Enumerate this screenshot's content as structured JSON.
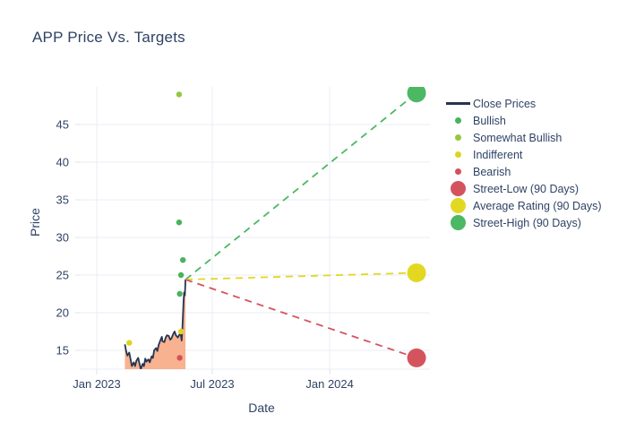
{
  "title": "APP Price Vs. Targets",
  "colors": {
    "text": "#2f4365",
    "grid": "#e9edf4",
    "tick": "#dde3ee",
    "close_line": "#263450",
    "area_fill": "#f8b28f",
    "bullish": "#48b35c",
    "somewhat_bullish": "#94c73e",
    "indifferent": "#e0d320",
    "bearish": "#d4505a",
    "street_low": "#d4545e",
    "average_rating": "#e2d821",
    "street_high": "#4bb863"
  },
  "legend": {
    "items": [
      {
        "label": "Close Prices",
        "marker": "line",
        "color": "#263450"
      },
      {
        "label": "Bullish",
        "marker": "dot",
        "color": "#48b35c"
      },
      {
        "label": "Somewhat Bullish",
        "marker": "dot",
        "color": "#94c73e"
      },
      {
        "label": "Indifferent",
        "marker": "dot",
        "color": "#e0d320"
      },
      {
        "label": "Bearish",
        "marker": "dot",
        "color": "#d4505a"
      },
      {
        "label": "Street-Low (90 Days)",
        "marker": "big-dot",
        "color": "#d4545e"
      },
      {
        "label": "Average Rating (90 Days)",
        "marker": "big-dot",
        "color": "#e2d821"
      },
      {
        "label": "Street-High (90 Days)",
        "marker": "big-dot",
        "color": "#4bb863"
      }
    ]
  },
  "chart_data": {
    "type": "line",
    "title": "APP Price Vs. Targets",
    "xlabel": "Date",
    "ylabel": "Price",
    "y_ticks": [
      15,
      20,
      25,
      30,
      35,
      40,
      45
    ],
    "y_range": [
      12.4,
      50.1
    ],
    "x_range": [
      "2022-12-07",
      "2024-06-03"
    ],
    "x_ticks": [
      {
        "label": "Jan 2023",
        "date": "2023-01-01"
      },
      {
        "label": "Jul 2023",
        "date": "2023-07-01"
      },
      {
        "label": "Jan 2024",
        "date": "2024-01-01"
      }
    ],
    "grid": true,
    "legend_position": "right",
    "close_prices": {
      "name": "Close Prices",
      "dates": [
        "2023-02-14",
        "2023-02-16",
        "2023-02-18",
        "2023-02-21",
        "2023-02-23",
        "2023-02-25",
        "2023-02-28",
        "2023-03-02",
        "2023-03-04",
        "2023-03-07",
        "2023-03-09",
        "2023-03-11",
        "2023-03-14",
        "2023-03-16",
        "2023-03-18",
        "2023-03-20",
        "2023-03-23",
        "2023-03-25",
        "2023-03-28",
        "2023-03-30",
        "2023-04-01",
        "2023-04-04",
        "2023-04-06",
        "2023-04-08",
        "2023-04-11",
        "2023-04-13",
        "2023-04-14",
        "2023-04-17",
        "2023-04-19",
        "2023-04-21",
        "2023-04-24",
        "2023-04-26",
        "2023-04-28",
        "2023-05-01",
        "2023-05-03",
        "2023-05-05",
        "2023-05-08",
        "2023-05-10",
        "2023-05-12",
        "2023-05-13",
        "2023-05-14",
        "2023-05-15",
        "2023-05-16",
        "2023-05-17",
        "2023-05-18",
        "2023-05-19",
        "2023-05-20"
      ],
      "values": [
        15.8,
        14.9,
        14.3,
        14.7,
        13.8,
        12.9,
        13.4,
        12.9,
        13.6,
        14.0,
        13.2,
        12.5,
        13.2,
        12.9,
        13.9,
        13.5,
        13.8,
        13.4,
        14.2,
        14.0,
        15.0,
        15.3,
        14.9,
        15.7,
        16.4,
        16.8,
        16.2,
        16.1,
        16.7,
        17.0,
        16.9,
        16.4,
        16.6,
        17.2,
        17.5,
        17.0,
        16.7,
        17.0,
        17.3,
        16.9,
        16.3,
        17.6,
        19.5,
        21.5,
        22.7,
        22.3,
        24.4
      ]
    },
    "ratings": [
      {
        "name": "Bullish",
        "color": "#48b35c",
        "points": [
          {
            "date": "2023-05-10",
            "value": 32
          },
          {
            "date": "2023-05-11",
            "value": 22.5
          },
          {
            "date": "2023-05-13",
            "value": 25
          },
          {
            "date": "2023-05-16",
            "value": 27
          }
        ]
      },
      {
        "name": "Somewhat Bullish",
        "color": "#94c73e",
        "points": [
          {
            "date": "2023-05-10",
            "value": 49
          }
        ]
      },
      {
        "name": "Indifferent",
        "color": "#e0d320",
        "points": [
          {
            "date": "2023-02-21",
            "value": 16
          },
          {
            "date": "2023-05-13",
            "value": 17.5
          }
        ]
      },
      {
        "name": "Bearish",
        "color": "#d4505a",
        "points": [
          {
            "date": "2023-05-11",
            "value": 14
          }
        ]
      }
    ],
    "targets": [
      {
        "name": "Street-High (90 Days)",
        "color": "#4bb863",
        "start_date": "2023-05-20",
        "start_value": 24.4,
        "end_date": "2024-05-16",
        "end_value": 49.2
      },
      {
        "name": "Average Rating (90 Days)",
        "color": "#e2d821",
        "start_date": "2023-05-20",
        "start_value": 24.4,
        "end_date": "2024-05-16",
        "end_value": 25.3
      },
      {
        "name": "Street-Low (90 Days)",
        "color": "#d4545e",
        "start_date": "2023-05-20",
        "start_value": 24.4,
        "end_date": "2024-05-16",
        "end_value": 14.0
      }
    ]
  }
}
